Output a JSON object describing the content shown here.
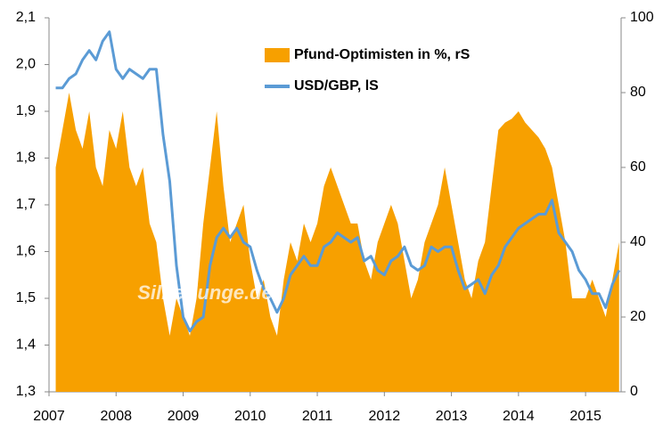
{
  "chart_data": {
    "type": "area_line",
    "annotation": "Silberjunge.de",
    "legend": "top-center",
    "x": [
      2007.1,
      2007.2,
      2007.3,
      2007.4,
      2007.5,
      2007.6,
      2007.7,
      2007.8,
      2007.9,
      2008.0,
      2008.1,
      2008.2,
      2008.3,
      2008.4,
      2008.5,
      2008.6,
      2008.7,
      2008.8,
      2008.9,
      2009.0,
      2009.1,
      2009.2,
      2009.3,
      2009.4,
      2009.5,
      2009.6,
      2009.7,
      2009.8,
      2009.9,
      2010.0,
      2010.1,
      2010.2,
      2010.3,
      2010.4,
      2010.5,
      2010.6,
      2010.7,
      2010.8,
      2010.9,
      2011.0,
      2011.1,
      2011.2,
      2011.3,
      2011.4,
      2011.5,
      2011.6,
      2011.7,
      2011.8,
      2011.9,
      2012.0,
      2012.1,
      2012.2,
      2012.3,
      2012.4,
      2012.5,
      2012.6,
      2012.7,
      2012.8,
      2012.9,
      2013.0,
      2013.1,
      2013.2,
      2013.3,
      2013.4,
      2013.5,
      2013.6,
      2013.7,
      2013.8,
      2013.9,
      2014.0,
      2014.1,
      2014.2,
      2014.3,
      2014.4,
      2014.5,
      2014.6,
      2014.7,
      2014.8,
      2014.9,
      2015.0,
      2015.1,
      2015.2,
      2015.3,
      2015.4,
      2015.5
    ],
    "series": [
      {
        "name": "Pfund-Optimisten in %, rS",
        "kind": "area",
        "axis": "y2",
        "color": "#f7a000",
        "values": [
          60,
          70,
          80,
          70,
          65,
          75,
          60,
          55,
          70,
          65,
          75,
          60,
          55,
          60,
          45,
          40,
          25,
          15,
          25,
          20,
          15,
          25,
          45,
          60,
          75,
          55,
          40,
          45,
          50,
          35,
          25,
          30,
          20,
          15,
          30,
          40,
          35,
          45,
          40,
          45,
          55,
          60,
          55,
          50,
          45,
          45,
          35,
          30,
          40,
          45,
          50,
          45,
          35,
          25,
          30,
          40,
          45,
          50,
          60,
          50,
          40,
          30,
          25,
          35,
          40,
          55,
          70,
          72,
          73,
          75,
          72,
          70,
          68,
          65,
          60,
          50,
          40,
          25,
          25,
          25,
          30,
          25,
          20,
          30,
          40
        ]
      },
      {
        "name": "USD/GBP, lS",
        "kind": "line",
        "axis": "y",
        "color": "#5b9bd5",
        "values": [
          1.95,
          1.95,
          1.97,
          1.98,
          2.01,
          2.03,
          2.01,
          2.05,
          2.07,
          1.99,
          1.97,
          1.99,
          1.98,
          1.97,
          1.99,
          1.99,
          1.85,
          1.75,
          1.57,
          1.46,
          1.43,
          1.45,
          1.46,
          1.57,
          1.63,
          1.65,
          1.63,
          1.65,
          1.62,
          1.61,
          1.56,
          1.52,
          1.5,
          1.47,
          1.5,
          1.55,
          1.57,
          1.59,
          1.57,
          1.57,
          1.61,
          1.62,
          1.64,
          1.63,
          1.62,
          1.63,
          1.58,
          1.59,
          1.56,
          1.55,
          1.58,
          1.59,
          1.61,
          1.57,
          1.56,
          1.57,
          1.61,
          1.6,
          1.61,
          1.61,
          1.56,
          1.52,
          1.53,
          1.54,
          1.51,
          1.55,
          1.57,
          1.61,
          1.63,
          1.65,
          1.66,
          1.67,
          1.68,
          1.68,
          1.71,
          1.64,
          1.62,
          1.6,
          1.56,
          1.54,
          1.51,
          1.51,
          1.48,
          1.53,
          1.56
        ]
      }
    ],
    "xlim": [
      2007,
      2015.53
    ],
    "xticks": [
      2007,
      2008,
      2009,
      2010,
      2011,
      2012,
      2013,
      2014,
      2015
    ],
    "ylim": [
      1.3,
      2.1
    ],
    "yticks": [
      {
        "value": 1.3,
        "label": "1,3"
      },
      {
        "value": 1.4,
        "label": "1,4"
      },
      {
        "value": 1.5,
        "label": "1,5"
      },
      {
        "value": 1.6,
        "label": "1,6"
      },
      {
        "value": 1.7,
        "label": "1,7"
      },
      {
        "value": 1.8,
        "label": "1,8"
      },
      {
        "value": 1.9,
        "label": "1,9"
      },
      {
        "value": 2.0,
        "label": "2,0"
      },
      {
        "value": 2.1,
        "label": "2,1"
      }
    ],
    "y2lim": [
      0,
      100
    ],
    "y2ticks": [
      0,
      20,
      40,
      60,
      80,
      100
    ]
  }
}
